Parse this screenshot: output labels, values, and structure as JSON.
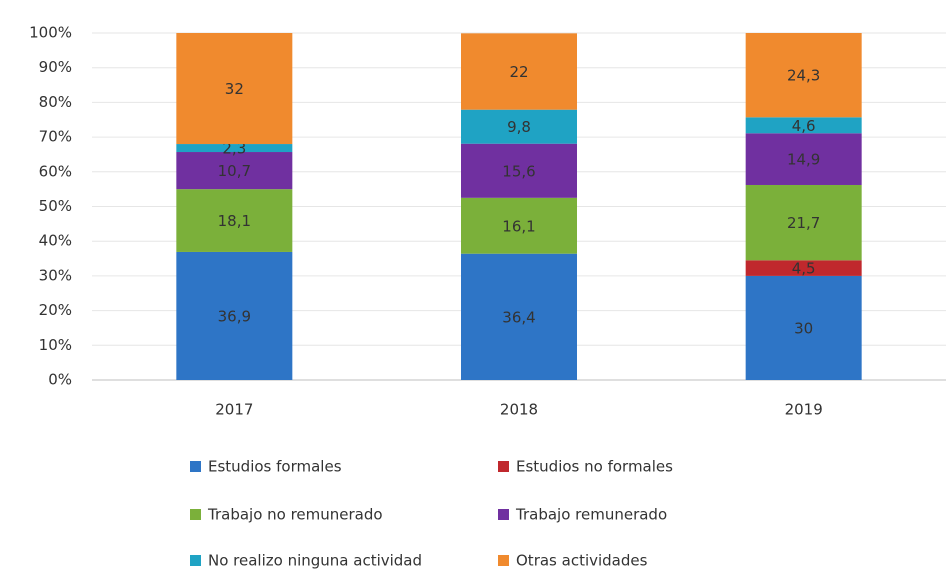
{
  "chart_data": {
    "type": "stacked_bar",
    "categories": [
      "2017",
      "2018",
      "2019"
    ],
    "series": [
      {
        "name": "Estudios formales",
        "color": "#2e75c6",
        "values": [
          36.9,
          36.4,
          30
        ],
        "value_labels": [
          "36,9",
          "36,4",
          "30"
        ]
      },
      {
        "name": "Estudios no formales",
        "color": "#c0282d",
        "values": [
          null,
          null,
          4.5
        ],
        "value_labels": [
          null,
          null,
          "4,5"
        ]
      },
      {
        "name": "Trabajo no remunerado",
        "color": "#7bb03a",
        "values": [
          18.1,
          16.1,
          21.7
        ],
        "value_labels": [
          "18,1",
          "16,1",
          "21,7"
        ]
      },
      {
        "name": "Trabajo remunerado",
        "color": "#7030a0",
        "values": [
          10.7,
          15.6,
          14.9
        ],
        "value_labels": [
          "10,7",
          "15,6",
          "14,9"
        ]
      },
      {
        "name": "No realizo ninguna actividad",
        "color": "#1fa3c4",
        "values": [
          2.3,
          9.8,
          4.6
        ],
        "value_labels": [
          "2,3",
          "9,8",
          "4,6"
        ]
      },
      {
        "name": "Otras actividades",
        "color": "#f08a2e",
        "values": [
          32,
          22,
          24.3
        ],
        "value_labels": [
          "32",
          "22",
          "24,3"
        ]
      }
    ],
    "ylim": [
      0,
      100
    ],
    "yticks": [
      {
        "value": 0,
        "label": "0%"
      },
      {
        "value": 10,
        "label": "10%"
      },
      {
        "value": 20,
        "label": "20%"
      },
      {
        "value": 30,
        "label": "30%"
      },
      {
        "value": 40,
        "label": "40%"
      },
      {
        "value": 50,
        "label": "50%"
      },
      {
        "value": 60,
        "label": "60%"
      },
      {
        "value": 70,
        "label": "70%"
      },
      {
        "value": 80,
        "label": "80%"
      },
      {
        "value": 90,
        "label": "90%"
      },
      {
        "value": 100,
        "label": "100%"
      }
    ],
    "grid": true
  }
}
